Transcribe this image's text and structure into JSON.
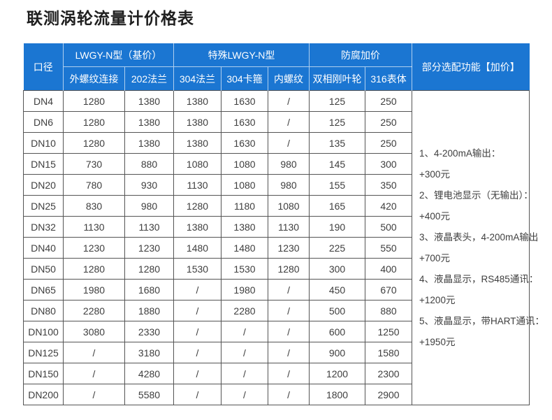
{
  "page": {
    "title": "联测涡轮流量计价格表"
  },
  "colors": {
    "header_bg": "#1b76d2",
    "header_text": "#ffffff",
    "body_border": "#545454",
    "body_text": "#3e3e3e",
    "title_text": "#1f1f1f"
  },
  "chart_data": {
    "type": "table",
    "title": "联测涡轮流量计价格表",
    "header_groups": [
      {
        "label": "口径",
        "colspan": 1,
        "rowspan": 2
      },
      {
        "label": "LWGY-N型（基价）",
        "colspan": 2,
        "rowspan": 1
      },
      {
        "label": "特殊LWGY-N型",
        "colspan": 3,
        "rowspan": 1
      },
      {
        "label": "防腐加价",
        "colspan": 2,
        "rowspan": 1
      },
      {
        "label": "部分选配功能【加价】",
        "colspan": 1,
        "rowspan": 2
      }
    ],
    "sub_headers": [
      "外螺纹连接",
      "202法兰",
      "304法兰",
      "304卡箍",
      "内螺纹",
      "双相刚叶轮",
      "316表体"
    ],
    "rows": [
      [
        "DN4",
        "1280",
        "1380",
        "1380",
        "1630",
        "/",
        "125",
        "250"
      ],
      [
        "DN6",
        "1280",
        "1380",
        "1380",
        "1630",
        "/",
        "125",
        "250"
      ],
      [
        "DN10",
        "1280",
        "1380",
        "1380",
        "1630",
        "/",
        "135",
        "250"
      ],
      [
        "DN15",
        "730",
        "880",
        "1080",
        "1080",
        "980",
        "145",
        "300"
      ],
      [
        "DN20",
        "780",
        "930",
        "1130",
        "1080",
        "980",
        "155",
        "350"
      ],
      [
        "DN25",
        "830",
        "980",
        "1280",
        "1180",
        "1080",
        "165",
        "420"
      ],
      [
        "DN32",
        "1130",
        "1130",
        "1380",
        "1380",
        "1130",
        "190",
        "500"
      ],
      [
        "DN40",
        "1230",
        "1230",
        "1480",
        "1480",
        "1230",
        "225",
        "550"
      ],
      [
        "DN50",
        "1280",
        "1280",
        "1530",
        "1530",
        "1280",
        "300",
        "400"
      ],
      [
        "DN65",
        "1980",
        "1680",
        "/",
        "1980",
        "/",
        "450",
        "670"
      ],
      [
        "DN80",
        "2280",
        "1880",
        "/",
        "2280",
        "/",
        "500",
        "880"
      ],
      [
        "DN100",
        "3080",
        "2330",
        "/",
        "/",
        "/",
        "600",
        "1250"
      ],
      [
        "DN125",
        "/",
        "3180",
        "/",
        "/",
        "/",
        "900",
        "1580"
      ],
      [
        "DN150",
        "/",
        "4280",
        "/",
        "/",
        "/",
        "1200",
        "2300"
      ],
      [
        "DN200",
        "/",
        "5580",
        "/",
        "/",
        "/",
        "1800",
        "2900"
      ]
    ],
    "notes": [
      "1、4-200mA输出：",
      "+300元",
      "2、锂电池显示（无输出）：",
      "+400元",
      "3、液晶表头，4-200mA输出",
      "+700元",
      "4、液晶显示，RS485通讯：",
      "+1200元",
      "5、液晶显示，带HART通讯：",
      "+1950元"
    ]
  }
}
